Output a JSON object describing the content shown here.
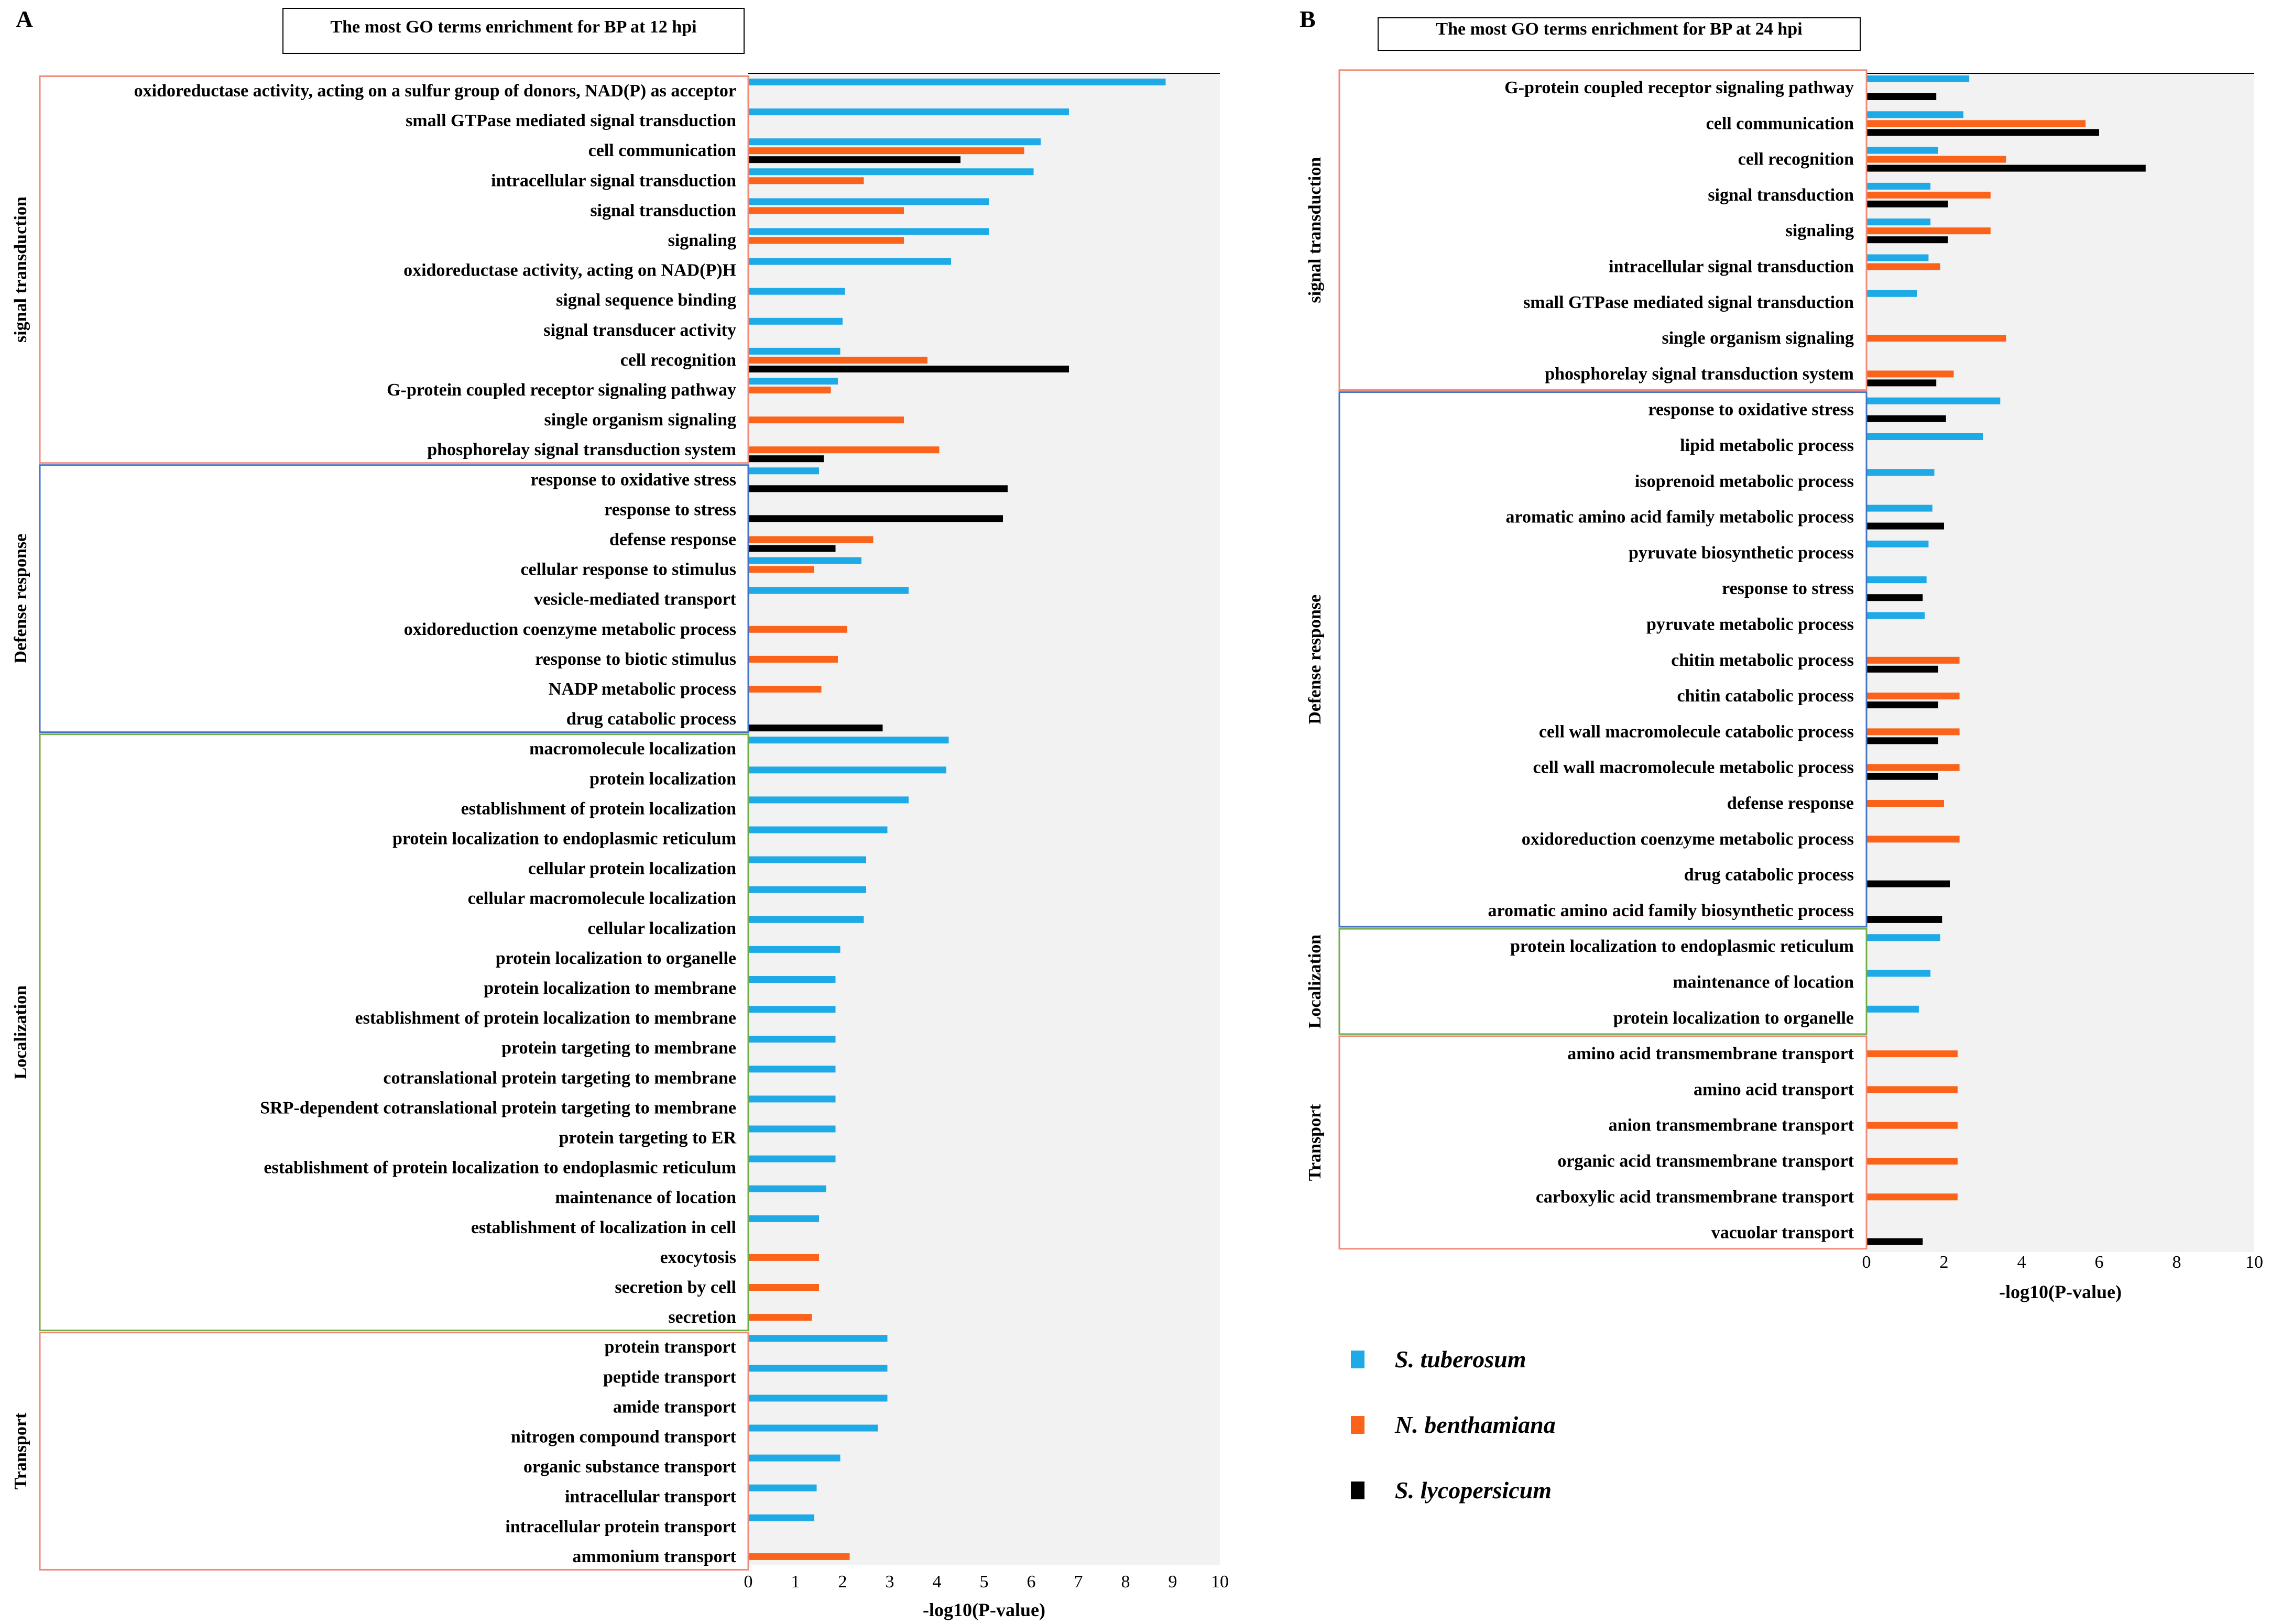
{
  "colors": {
    "S. tuberosum": "#1eaae6",
    "N. benthamiana": "#fa6319",
    "S. lycopersicum": "#000000",
    "plot_bg": "#f2f2f2",
    "box_red": "#f08a78",
    "box_blue": "#4472c4",
    "box_green": "#70ad47"
  },
  "legend": [
    {
      "name": "S. tuberosum",
      "color": "#1eaae6"
    },
    {
      "name": "N. benthamiana",
      "color": "#fa6319"
    },
    {
      "name": "S. lycopersicum",
      "color": "#000000"
    }
  ],
  "chart_data": [
    {
      "type": "bar",
      "orientation": "horizontal",
      "panel": "A",
      "title": "The most GO terms enrichment for BP at 12 hpi",
      "xlabel": "-log10(P-value)",
      "xlim": [
        0,
        10
      ],
      "xticks": [
        "0",
        "1",
        "2",
        "3",
        "4",
        "5",
        "6",
        "7",
        "8",
        "9",
        "10"
      ],
      "series_names": [
        "S. tuberosum",
        "N. benthamiana",
        "S. lycopersicum"
      ],
      "groups": [
        {
          "label": "signal transduction",
          "box_color": "#f08a78",
          "start": 0,
          "end": 12
        },
        {
          "label": "Defense response",
          "box_color": "#4472c4",
          "start": 13,
          "end": 21
        },
        {
          "label": "Localization",
          "box_color": "#70ad47",
          "start": 22,
          "end": 41
        },
        {
          "label": "Transport",
          "box_color": "#f08a78",
          "start": 42,
          "end": 49
        }
      ],
      "categories": [
        "oxidoreductase activity, acting on a sulfur group of donors, NAD(P) as acceptor",
        "small GTPase mediated signal transduction",
        "cell communication",
        "intracellular signal transduction",
        "signal transduction",
        "signaling",
        "oxidoreductase activity, acting on NAD(P)H",
        "signal sequence binding",
        "signal transducer activity",
        "cell recognition",
        "G-protein coupled receptor signaling pathway",
        "single organism signaling",
        "phosphorelay signal transduction system",
        "response to oxidative stress",
        "response to stress",
        "defense response",
        "cellular response to stimulus",
        "vesicle-mediated transport",
        "oxidoreduction coenzyme metabolic process",
        "response to biotic stimulus",
        "NADP metabolic process",
        "drug catabolic process",
        "macromolecule localization",
        "protein localization",
        "establishment of protein localization",
        "protein localization to endoplasmic reticulum",
        "cellular protein localization",
        "cellular macromolecule localization",
        "cellular localization",
        "protein localization to organelle",
        "protein localization to membrane",
        "establishment of protein localization to membrane",
        "protein targeting to membrane",
        "cotranslational protein targeting to membrane",
        "SRP-dependent cotranslational protein targeting to membrane",
        "protein targeting to ER",
        "establishment of protein localization to endoplasmic reticulum",
        "maintenance of location",
        "establishment of localization in cell",
        "exocytosis",
        "secretion by cell",
        "secretion",
        "protein transport",
        "peptide transport",
        "amide transport",
        "nitrogen compound transport",
        "organic substance transport",
        "intracellular transport",
        "intracellular protein transport",
        "ammonium transport"
      ],
      "values": [
        [
          8.85,
          null,
          null
        ],
        [
          6.8,
          null,
          null
        ],
        [
          6.2,
          5.85,
          4.5
        ],
        [
          6.05,
          2.45,
          null
        ],
        [
          5.1,
          3.3,
          null
        ],
        [
          5.1,
          3.3,
          null
        ],
        [
          4.3,
          null,
          null
        ],
        [
          2.05,
          null,
          null
        ],
        [
          2.0,
          null,
          null
        ],
        [
          1.95,
          3.8,
          6.8
        ],
        [
          1.9,
          1.75,
          null
        ],
        [
          null,
          3.3,
          null
        ],
        [
          null,
          4.05,
          1.6
        ],
        [
          1.5,
          null,
          5.5
        ],
        [
          null,
          null,
          5.4
        ],
        [
          null,
          2.65,
          1.85
        ],
        [
          2.4,
          1.4,
          null
        ],
        [
          3.4,
          null,
          null
        ],
        [
          null,
          2.1,
          null
        ],
        [
          null,
          1.9,
          null
        ],
        [
          null,
          1.55,
          null
        ],
        [
          null,
          null,
          2.85
        ],
        [
          4.25,
          null,
          null
        ],
        [
          4.2,
          null,
          null
        ],
        [
          3.4,
          null,
          null
        ],
        [
          2.95,
          null,
          null
        ],
        [
          2.5,
          null,
          null
        ],
        [
          2.5,
          null,
          null
        ],
        [
          2.45,
          null,
          null
        ],
        [
          1.95,
          null,
          null
        ],
        [
          1.85,
          null,
          null
        ],
        [
          1.85,
          null,
          null
        ],
        [
          1.85,
          null,
          null
        ],
        [
          1.85,
          null,
          null
        ],
        [
          1.85,
          null,
          null
        ],
        [
          1.85,
          null,
          null
        ],
        [
          1.85,
          null,
          null
        ],
        [
          1.65,
          null,
          null
        ],
        [
          1.5,
          null,
          null
        ],
        [
          null,
          1.5,
          null
        ],
        [
          null,
          1.5,
          null
        ],
        [
          null,
          1.35,
          null
        ],
        [
          2.95,
          null,
          null
        ],
        [
          2.95,
          null,
          null
        ],
        [
          2.95,
          null,
          null
        ],
        [
          2.75,
          null,
          null
        ],
        [
          1.95,
          null,
          null
        ],
        [
          1.45,
          null,
          null
        ],
        [
          1.4,
          null,
          null
        ],
        [
          null,
          2.15,
          null
        ]
      ]
    },
    {
      "type": "bar",
      "orientation": "horizontal",
      "panel": "B",
      "title": "The most GO terms enrichment for BP at 24 hpi",
      "xlabel": "-log10(P-value)",
      "xlim": [
        0,
        10
      ],
      "xticks": [
        "0",
        "2",
        "4",
        "6",
        "8",
        "10"
      ],
      "series_names": [
        "S. tuberosum",
        "N. benthamiana",
        "S. lycopersicum"
      ],
      "groups": [
        {
          "label": "signal transduction",
          "box_color": "#f08a78",
          "start": 0,
          "end": 8
        },
        {
          "label": "Defense response",
          "box_color": "#4472c4",
          "start": 9,
          "end": 23
        },
        {
          "label": "Localization",
          "box_color": "#70ad47",
          "start": 24,
          "end": 26
        },
        {
          "label": "Transport",
          "box_color": "#f08a78",
          "start": 27,
          "end": 32
        }
      ],
      "categories": [
        "G-protein coupled receptor signaling pathway",
        "cell communication",
        "cell recognition",
        "signal transduction",
        "signaling",
        "intracellular signal transduction",
        "small GTPase mediated signal transduction",
        "single organism signaling",
        "phosphorelay signal transduction system",
        "response to oxidative stress",
        "lipid metabolic process",
        "isoprenoid metabolic process",
        "aromatic amino acid family metabolic process",
        "pyruvate biosynthetic process",
        "response to stress",
        "pyruvate metabolic process",
        "chitin metabolic process",
        "chitin catabolic process",
        "cell wall macromolecule catabolic process",
        "cell wall macromolecule metabolic process",
        "defense response",
        "oxidoreduction coenzyme metabolic process",
        "drug catabolic process",
        "aromatic amino acid family biosynthetic process",
        "protein localization to endoplasmic reticulum",
        "maintenance of location",
        "protein localization to organelle",
        "amino acid transmembrane transport",
        "amino acid transport",
        "anion transmembrane transport",
        "organic acid transmembrane transport",
        "carboxylic acid transmembrane transport",
        "vacuolar transport"
      ],
      "values": [
        [
          2.65,
          null,
          1.8
        ],
        [
          2.5,
          5.65,
          6.0
        ],
        [
          1.85,
          3.6,
          7.2
        ],
        [
          1.65,
          3.2,
          2.1
        ],
        [
          1.65,
          3.2,
          2.1
        ],
        [
          1.6,
          1.9,
          null
        ],
        [
          1.3,
          null,
          null
        ],
        [
          null,
          3.6,
          null
        ],
        [
          null,
          2.25,
          1.8
        ],
        [
          3.45,
          null,
          2.05
        ],
        [
          3.0,
          null,
          null
        ],
        [
          1.75,
          null,
          null
        ],
        [
          1.7,
          null,
          2.0
        ],
        [
          1.6,
          null,
          null
        ],
        [
          1.55,
          null,
          1.45
        ],
        [
          1.5,
          null,
          null
        ],
        [
          null,
          2.4,
          1.85
        ],
        [
          null,
          2.4,
          1.85
        ],
        [
          null,
          2.4,
          1.85
        ],
        [
          null,
          2.4,
          1.85
        ],
        [
          null,
          2.0,
          null
        ],
        [
          null,
          2.4,
          null
        ],
        [
          null,
          null,
          2.15
        ],
        [
          null,
          null,
          1.95
        ],
        [
          1.9,
          null,
          null
        ],
        [
          1.65,
          null,
          null
        ],
        [
          1.35,
          null,
          null
        ],
        [
          null,
          2.35,
          null
        ],
        [
          null,
          2.35,
          null
        ],
        [
          null,
          2.35,
          null
        ],
        [
          null,
          2.35,
          null
        ],
        [
          null,
          2.35,
          null
        ],
        [
          null,
          null,
          1.45
        ]
      ]
    }
  ]
}
